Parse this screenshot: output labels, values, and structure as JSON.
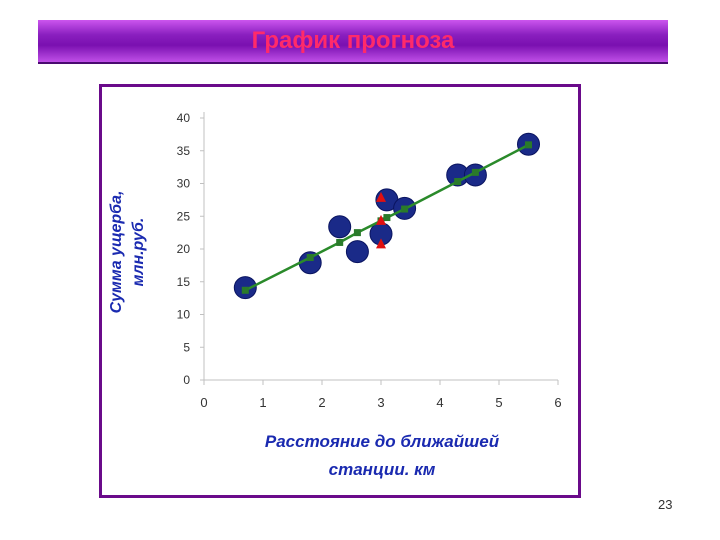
{
  "slide": {
    "title": "График прогноза",
    "page_number": "23"
  },
  "chart_data": {
    "type": "scatter",
    "xlabel_lines": [
      "Расстояние до ближайшей",
      "станции. км"
    ],
    "ylabel_lines": [
      "Сумма ущерба,",
      "млн.руб."
    ],
    "xlim": [
      0,
      6
    ],
    "ylim": [
      0,
      40
    ],
    "x_ticks": [
      0,
      1,
      2,
      3,
      4,
      5,
      6
    ],
    "y_ticks": [
      0,
      5,
      10,
      15,
      20,
      25,
      30,
      35,
      40
    ],
    "grid": false,
    "series": [
      {
        "role": "observed",
        "marker": "circle",
        "points": [
          {
            "x": 0.7,
            "y": 14.1
          },
          {
            "x": 1.8,
            "y": 17.9
          },
          {
            "x": 2.3,
            "y": 23.4
          },
          {
            "x": 2.6,
            "y": 19.6
          },
          {
            "x": 3.0,
            "y": 22.3
          },
          {
            "x": 3.1,
            "y": 27.5
          },
          {
            "x": 3.4,
            "y": 26.2
          },
          {
            "x": 4.3,
            "y": 31.3
          },
          {
            "x": 4.6,
            "y": 31.3
          },
          {
            "x": 5.5,
            "y": 36.0
          }
        ]
      },
      {
        "role": "fitted",
        "marker": "square",
        "line": true,
        "points": [
          {
            "x": 0.7,
            "y": 13.7
          },
          {
            "x": 1.8,
            "y": 18.7
          },
          {
            "x": 2.3,
            "y": 21.0
          },
          {
            "x": 2.6,
            "y": 22.5
          },
          {
            "x": 3.0,
            "y": 24.3
          },
          {
            "x": 3.1,
            "y": 24.8
          },
          {
            "x": 3.4,
            "y": 26.1
          },
          {
            "x": 4.3,
            "y": 30.3
          },
          {
            "x": 4.6,
            "y": 31.7
          },
          {
            "x": 5.5,
            "y": 35.9
          }
        ]
      },
      {
        "role": "forecast",
        "marker": "triangle",
        "points": [
          {
            "x": 3.0,
            "y": 27.8
          },
          {
            "x": 3.0,
            "y": 24.3
          },
          {
            "x": 3.0,
            "y": 20.7
          }
        ]
      }
    ],
    "colors": {
      "observed_fill": "#1a2a88",
      "observed_stroke": "#0a1460",
      "fitted_marker": "#2a7a2a",
      "fitted_line": "#2a8a2a",
      "forecast_marker": "#e01010",
      "tick_label": "#333333",
      "axis_label": "#1a2ab0",
      "axis": "#c0c0c0"
    }
  }
}
